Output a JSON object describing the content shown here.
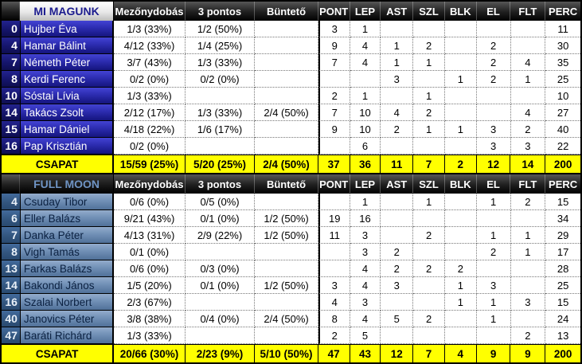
{
  "columns": [
    "Mezőnydobás",
    "3 pontos",
    "Büntető",
    "PONT",
    "LEP",
    "AST",
    "SZL",
    "BLK",
    "EL",
    "FLT",
    "PERC"
  ],
  "colors": {
    "team1_title_text": "#1b1b8e",
    "team2_title_text": "#6f94c4",
    "total_row_bg": "#ffff00",
    "team1_row_bg": "#2c2cb0",
    "team2_row_bg": "#7190b6",
    "header_bg": "#1f1f1f"
  },
  "teams": [
    {
      "name": "MI MAGUNK",
      "players": [
        {
          "num": "0",
          "name": "Hujber Éva",
          "stats": [
            "1/3 (33%)",
            "1/2 (50%)",
            "",
            "3",
            "1",
            "",
            "",
            "",
            "",
            "",
            "11"
          ]
        },
        {
          "num": "4",
          "name": "Hamar Bálint",
          "stats": [
            "4/12 (33%)",
            "1/4 (25%)",
            "",
            "9",
            "4",
            "1",
            "2",
            "",
            "2",
            "",
            "30"
          ]
        },
        {
          "num": "7",
          "name": "Németh Péter",
          "stats": [
            "3/7 (43%)",
            "1/3 (33%)",
            "",
            "7",
            "4",
            "1",
            "1",
            "",
            "2",
            "4",
            "35"
          ]
        },
        {
          "num": "8",
          "name": "Kerdi Ferenc",
          "stats": [
            "0/2 (0%)",
            "0/2 (0%)",
            "",
            "",
            "",
            "3",
            "",
            "1",
            "2",
            "1",
            "25"
          ]
        },
        {
          "num": "10",
          "name": "Sóstai Lívia",
          "stats": [
            "1/3 (33%)",
            "",
            "",
            "2",
            "1",
            "",
            "1",
            "",
            "",
            "",
            "10"
          ]
        },
        {
          "num": "14",
          "name": "Takács Zsolt",
          "stats": [
            "2/12 (17%)",
            "1/3 (33%)",
            "2/4 (50%)",
            "7",
            "10",
            "4",
            "2",
            "",
            "",
            "4",
            "27"
          ]
        },
        {
          "num": "15",
          "name": "Hamar Dániel",
          "stats": [
            "4/18 (22%)",
            "1/6 (17%)",
            "",
            "9",
            "10",
            "2",
            "1",
            "1",
            "3",
            "2",
            "40"
          ]
        },
        {
          "num": "16",
          "name": "Pap Krisztián",
          "stats": [
            "0/2 (0%)",
            "",
            "",
            "",
            "6",
            "",
            "",
            "",
            "3",
            "3",
            "22"
          ]
        }
      ],
      "total": {
        "label": "CSAPAT",
        "stats": [
          "15/59 (25%)",
          "5/20 (25%)",
          "2/4 (50%)",
          "37",
          "36",
          "11",
          "7",
          "2",
          "12",
          "14",
          "200"
        ]
      }
    },
    {
      "name": "FULL MOON",
      "players": [
        {
          "num": "4",
          "name": "Csuday Tibor",
          "stats": [
            "0/6 (0%)",
            "0/5 (0%)",
            "",
            "",
            "1",
            "",
            "1",
            "",
            "1",
            "2",
            "15"
          ]
        },
        {
          "num": "6",
          "name": "Eller Balázs",
          "stats": [
            "9/21 (43%)",
            "0/1 (0%)",
            "1/2 (50%)",
            "19",
            "16",
            "",
            "",
            "",
            "",
            "",
            "34"
          ]
        },
        {
          "num": "7",
          "name": "Danka Péter",
          "stats": [
            "4/13 (31%)",
            "2/9 (22%)",
            "1/2 (50%)",
            "11",
            "3",
            "",
            "2",
            "",
            "1",
            "1",
            "29"
          ]
        },
        {
          "num": "8",
          "name": "Vigh Tamás",
          "stats": [
            "0/1 (0%)",
            "",
            "",
            "",
            "3",
            "2",
            "",
            "",
            "2",
            "1",
            "17"
          ]
        },
        {
          "num": "13",
          "name": "Farkas Balázs",
          "stats": [
            "0/6 (0%)",
            "0/3 (0%)",
            "",
            "",
            "4",
            "2",
            "2",
            "2",
            "",
            "",
            "28"
          ]
        },
        {
          "num": "14",
          "name": "Bakondi János",
          "stats": [
            "1/5 (20%)",
            "0/1 (0%)",
            "1/2 (50%)",
            "3",
            "4",
            "3",
            "",
            "1",
            "3",
            "",
            "25"
          ]
        },
        {
          "num": "16",
          "name": "Szalai Norbert",
          "stats": [
            "2/3 (67%)",
            "",
            "",
            "4",
            "3",
            "",
            "",
            "1",
            "1",
            "3",
            "15"
          ]
        },
        {
          "num": "40",
          "name": "Janovics Péter",
          "stats": [
            "3/8 (38%)",
            "0/4 (0%)",
            "2/4 (50%)",
            "8",
            "4",
            "5",
            "2",
            "",
            "1",
            "",
            "24"
          ]
        },
        {
          "num": "47",
          "name": "Baráti Richárd",
          "stats": [
            "1/3 (33%)",
            "",
            "",
            "2",
            "5",
            "",
            "",
            "",
            "",
            "2",
            "13"
          ]
        }
      ],
      "total": {
        "label": "CSAPAT",
        "stats": [
          "20/66 (30%)",
          "2/23 (9%)",
          "5/10 (50%)",
          "47",
          "43",
          "12",
          "7",
          "4",
          "9",
          "9",
          "200"
        ]
      }
    }
  ]
}
